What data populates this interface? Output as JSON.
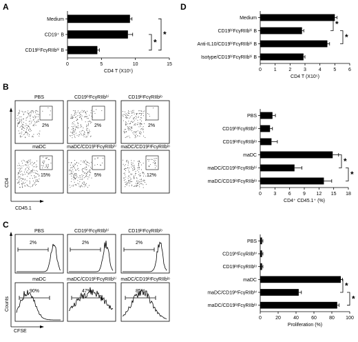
{
  "panels": {
    "A": "A",
    "B": "B",
    "C": "C",
    "D": "D"
  },
  "chart_data": [
    {
      "id": "A",
      "type": "bar",
      "orientation": "horizontal",
      "categories": [
        "Medium",
        "CD19⁺ B",
        "CD19ʰⁱFcγRIIbʰⁱ B"
      ],
      "values": [
        9.2,
        8.9,
        4.4
      ],
      "errors": [
        0.3,
        0.7,
        0.3
      ],
      "xlabel": "CD4 T (X10⁵)",
      "xlim": [
        0,
        15
      ],
      "xticks": [
        "0",
        "5",
        "10",
        "15"
      ],
      "significance": [
        "*",
        "*"
      ]
    },
    {
      "id": "D",
      "type": "bar",
      "orientation": "horizontal",
      "categories": [
        "Medium",
        "CD19ʰⁱFcγRIIbʰⁱ B",
        "Anti-IL10/CD19ʰⁱFcγRIIbʰⁱ B",
        "Isotype/CD19ʰⁱFcγRIIbʰⁱ B"
      ],
      "values": [
        5.0,
        2.8,
        4.5,
        2.9
      ],
      "errors": [
        0.15,
        0.12,
        0.15,
        0.1
      ],
      "xlabel": "CD4 T (X10⁵)",
      "xlim": [
        0,
        6
      ],
      "xticks": [
        "0",
        "1",
        "2",
        "3",
        "4",
        "5",
        "6"
      ],
      "significance": [
        "*",
        "*"
      ]
    },
    {
      "id": "B-bar",
      "type": "bar",
      "orientation": "horizontal",
      "categories": [
        "PBS",
        "CD19ʰⁱFcγRIIbʰⁱ",
        "CD19ˡᵒFcγRIIbˡᵒ",
        "maDC",
        "maDC/CD19ʰⁱFcγRIIbʰⁱ",
        "maDC/CD19ˡᵒFcγRIIbˡᵒ"
      ],
      "values": [
        2.5,
        2.0,
        2.3,
        14.8,
        7.0,
        13.0
      ],
      "errors": [
        0.6,
        0.5,
        1.2,
        1.2,
        1.5,
        1.6
      ],
      "xlabel": "CD4⁺ CD45.1⁺ (%)",
      "xlim": [
        0,
        18
      ],
      "xticks": [
        "0",
        "3",
        "6",
        "9",
        "12",
        "15",
        "18"
      ],
      "significance": [
        "*",
        "*"
      ]
    },
    {
      "id": "C-bar",
      "type": "bar",
      "orientation": "horizontal",
      "categories": [
        "PBS",
        "CD19ʰⁱFcγRIIbʰⁱ",
        "CD19ˡᵒFcγRIIbˡᵒ",
        "maDC",
        "maDC/CD19ʰⁱFcγRIIbʰⁱ",
        "maDC/CD19ˡᵒFcγRIIbˡᵒ"
      ],
      "values": [
        2,
        2,
        2,
        90,
        43,
        86
      ],
      "errors": [
        1,
        1,
        1,
        2,
        3,
        2
      ],
      "xlabel": "Proliferation (%)",
      "xlim": [
        0,
        100
      ],
      "xticks": [
        "0",
        "20",
        "40",
        "60",
        "80",
        "100"
      ],
      "significance": [
        "*",
        "*"
      ]
    }
  ],
  "flow_B": {
    "titles": [
      "PBS",
      "CD19ʰⁱFcγRIIbʰⁱ",
      "CD19ˡᵒFcγRIIbˡᵒ",
      "maDC",
      "maDC/CD19ʰⁱFcγRIIbʰⁱ",
      "maDC/CD19ˡᵒFcγRIIbˡᵒ"
    ],
    "percents": [
      "2%",
      "2%",
      "2%",
      "15%",
      "5%",
      "12%"
    ],
    "yaxis": "CD4",
    "xaxis": "CD45.1"
  },
  "hist_C": {
    "titles": [
      "PBS",
      "CD19ʰⁱFcγRIIbʰⁱ",
      "CD19ˡᵒFcγRIIbˡᵒ",
      "maDC",
      "maDC/CD19ʰⁱFcγRIIbʰⁱ",
      "maDC/CD19ˡᵒFcγRIIbˡᵒ"
    ],
    "percents": [
      "2%",
      "2%",
      "2%",
      "90%",
      "47%",
      "85%"
    ],
    "yaxis": "Counts",
    "xaxis": "CFSE"
  }
}
